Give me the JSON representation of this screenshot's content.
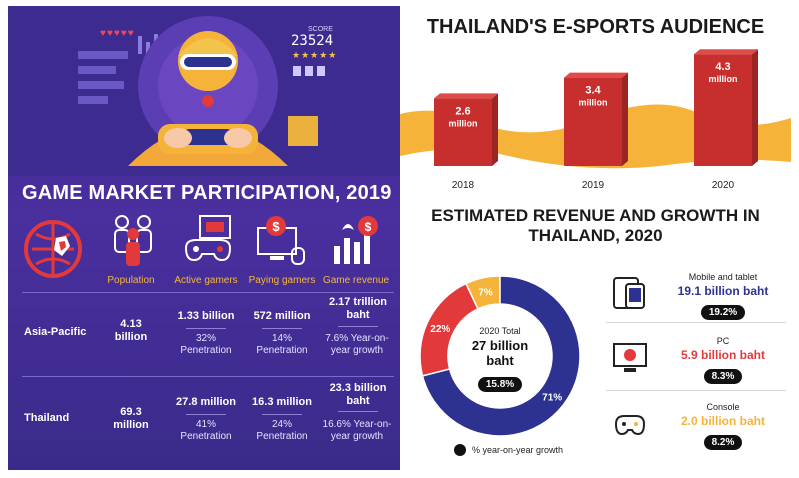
{
  "left": {
    "title": "GAME MARKET PARTICIPATION, 2019",
    "score_label": "SCORE",
    "score_value": "23524",
    "stars": "★★★★★",
    "hearts": "♥♥♥♥♥",
    "columns": [
      "Population",
      "Active gamers",
      "Paying gamers",
      "Game revenue"
    ],
    "rows": [
      {
        "label": "Asia-Pacific",
        "population": "4.13 billion",
        "active": "1.33 billion",
        "active_sub": "32% Penetration",
        "paying": "572 million",
        "paying_sub": "14% Penetration",
        "revenue": "2.17 trillion baht",
        "revenue_sub": "7.6% Year-on-year growth"
      },
      {
        "label": "Thailand",
        "population": "69.3 million",
        "active": "27.8 million",
        "active_sub": "41% Penetration",
        "paying": "16.3 million",
        "paying_sub": "24% Penetration",
        "revenue": "23.3 billion baht",
        "revenue_sub": "16.6% Year-on-year growth"
      }
    ]
  },
  "chart_data": [
    {
      "type": "bar",
      "title": "THAILAND'S E-SPORTS AUDIENCE",
      "categories": [
        "2018",
        "2019",
        "2020"
      ],
      "values": [
        2.6,
        3.4,
        4.3
      ],
      "value_labels": [
        "2.6 million",
        "3.4 million",
        "4.3 million"
      ],
      "xlabel": "",
      "ylabel": "",
      "ylim": [
        0,
        5
      ],
      "grid": false
    },
    {
      "type": "pie",
      "title": "ESTIMATED REVENUE AND GROWTH IN THAILAND, 2020",
      "center_label": "2020 Total",
      "center_value": "27 billion baht",
      "center_growth": "15.8%",
      "slices": [
        {
          "percent": 71,
          "label": "71%",
          "color": "#2d3190"
        },
        {
          "percent": 22,
          "label": "22%",
          "color": "#e2393b"
        },
        {
          "percent": 7,
          "label": "7%",
          "color": "#f6b33a"
        }
      ],
      "legend": "% year-on-year growth",
      "segments": [
        {
          "name": "Mobile and tablet",
          "value": "19.1 billion baht",
          "growth": "19.2%",
          "color": "#2d3190"
        },
        {
          "name": "PC",
          "value": "5.9 billion baht",
          "growth": "8.3%",
          "color": "#e2393b"
        },
        {
          "name": "Console",
          "value": "2.0 billion baht",
          "growth": "8.2%",
          "color": "#f6b33a"
        }
      ]
    }
  ],
  "colors": {
    "purple": "#3b2a8c",
    "orange": "#f6b33a",
    "red": "#e2393b",
    "navy": "#2d3190",
    "bar_red": "#c62f2d"
  }
}
